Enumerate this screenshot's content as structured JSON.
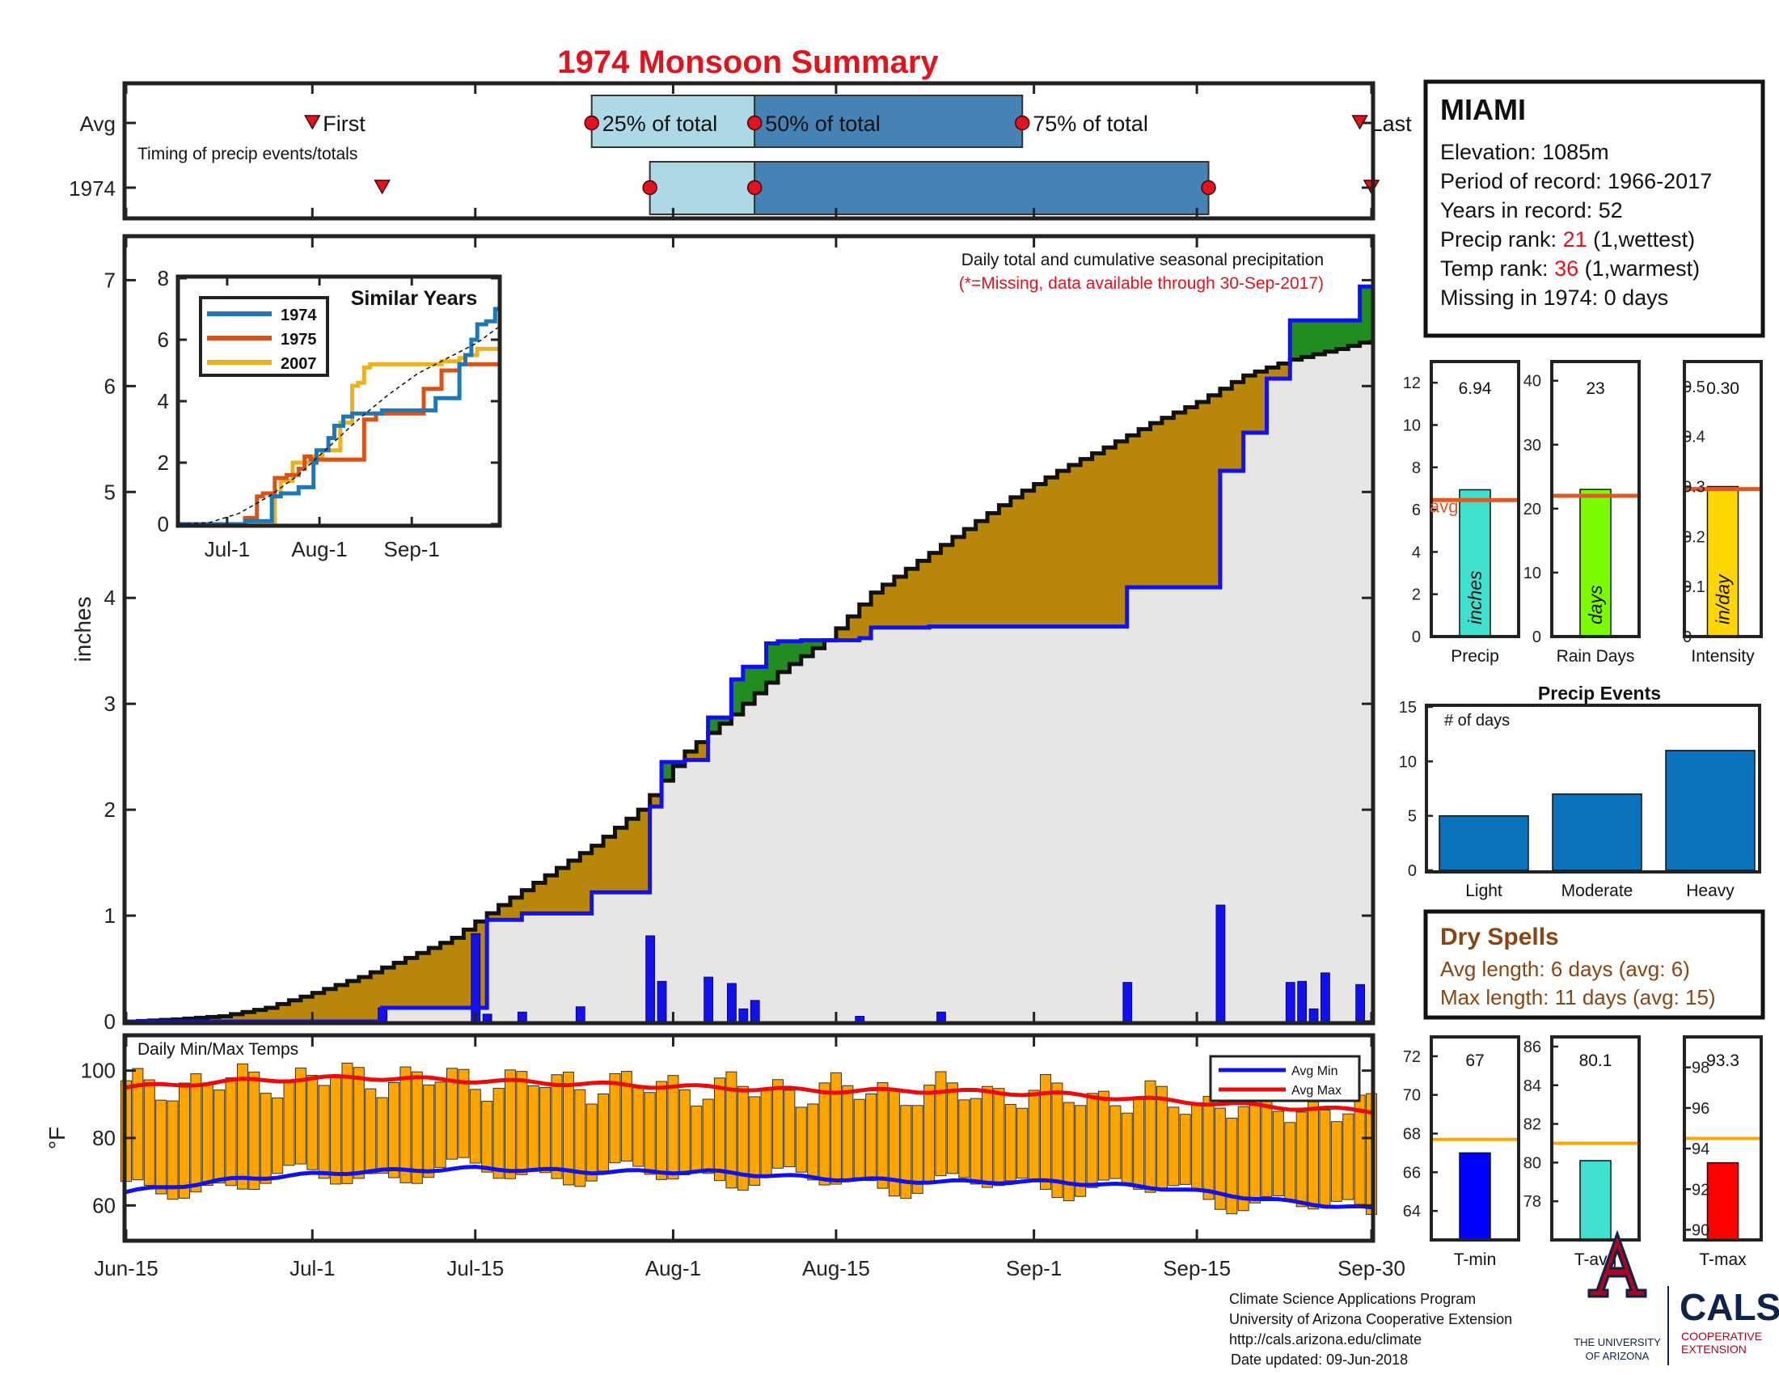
{
  "title": "1974 Monsoon Summary",
  "colors": {
    "title": "#e0141e",
    "red": "#e0141e",
    "avg_line": "#dc5a28",
    "wet_fill": "#b8860b",
    "dry_fill": "#228b22",
    "base_fill": "#e8e6e4",
    "daily_bar": "#1010f0",
    "avg_line_blue": "#1010f0",
    "temp_bar": "#ffa500",
    "avg_max": "#e80c0c",
    "tl_light": "#add8e6",
    "tl_dark": "#4682b4",
    "brown_text": "#8b4513",
    "ua_red": "#ab0520",
    "ua_navy": "#0c234b"
  },
  "timing": {
    "rows": [
      "Avg",
      "1974"
    ],
    "caption": "Timing of precip events/totals",
    "labels": {
      "first": "First",
      "q25": "25% of total",
      "q50": "50% of total",
      "q75": "75% of total",
      "last": "Last"
    },
    "avg": {
      "first": 16,
      "q25": 40,
      "q50": 54,
      "q75": 77,
      "last": 106
    },
    "year": {
      "first": 22,
      "q25": 45,
      "q50": 54,
      "q75": 93,
      "last": 107
    }
  },
  "main": {
    "annotation_1": "Daily total and cumulative seasonal precipitation",
    "annotation_2": "(*=Missing, data available through 30-Sep-2017)",
    "ylabel": "inches",
    "y_ticks": [
      "0",
      "1",
      "2",
      "3",
      "4",
      "5",
      "6",
      "7"
    ],
    "x_ticks": [
      "Jun-15",
      "Jul-1",
      "Jul-15",
      "Aug-1",
      "Aug-15",
      "Sep-1",
      "Sep-15",
      "Sep-30"
    ]
  },
  "inset": {
    "title": "Similar Years",
    "x_ticks": [
      "Jul-1",
      "Aug-1",
      "Sep-1"
    ],
    "y_ticks": [
      "0",
      "2",
      "4",
      "6",
      "8"
    ],
    "legend": [
      "1974",
      "1975",
      "2007"
    ]
  },
  "temps": {
    "title": "Daily Min/Max Temps",
    "ylabel": "°F",
    "y_ticks": [
      "60",
      "80",
      "100"
    ],
    "legend_min": "Avg Min",
    "legend_max": "Avg Max"
  },
  "info": {
    "station": "MIAMI",
    "elevation": "Elevation: 1085m",
    "period": "Period of record: 1966-2017",
    "years": "Years in record: 52",
    "precip_rank_label": "Precip rank: ",
    "precip_rank_value": "21",
    "precip_rank_note": " (1,wettest)",
    "temp_rank_label": "Temp rank: ",
    "temp_rank_value": "36",
    "temp_rank_note": " (1,warmest)",
    "missing": "Missing in 1974: 0 days"
  },
  "stats": {
    "precip": {
      "label": "Precip",
      "value_text": "6.94",
      "unit": "inches",
      "avg_label": "avg",
      "ticks": [
        "0",
        "2",
        "4",
        "6",
        "8",
        "10",
        "12"
      ]
    },
    "days": {
      "label": "Rain Days",
      "value_text": "23",
      "unit": "days",
      "ticks": [
        "0",
        "10",
        "20",
        "30",
        "40"
      ]
    },
    "intensity": {
      "label": "Intensity",
      "value_text": "0.30",
      "unit": "in/day",
      "ticks": [
        "0",
        "0.1",
        "0.2",
        "0.3",
        "0.4",
        "0.5"
      ]
    }
  },
  "events": {
    "title": "Precip Events",
    "note": "# of days",
    "ticks": [
      "0",
      "5",
      "10",
      "15"
    ]
  },
  "dry_spells": {
    "title": "Dry Spells",
    "avg": "Avg length: 6 days (avg: 6)",
    "max": "Max length: 11 days (avg: 15)"
  },
  "temp_stats": {
    "tmin": {
      "label": "T-min",
      "value_text": "67",
      "ticks": [
        "64",
        "66",
        "68",
        "70",
        "72"
      ]
    },
    "tavg": {
      "label": "T-avg",
      "value_text": "80.1",
      "ticks": [
        "78",
        "80",
        "82",
        "84",
        "86"
      ]
    },
    "tmax": {
      "label": "T-max",
      "value_text": "93.3",
      "ticks": [
        "90",
        "92",
        "94",
        "96",
        "98"
      ]
    }
  },
  "footer": {
    "line1": "Climate Science Applications Program",
    "line2": "University of Arizona Cooperative Extension",
    "line3": "http://cals.arizona.edu/climate",
    "line4": "Date updated: 09-Jun-2018",
    "ua_text_1": "THE UNIVERSITY",
    "ua_text_2": "OF ARIZONA",
    "cals": "CALS",
    "coop_1": "COOPERATIVE",
    "coop_2": "EXTENSION"
  },
  "chart_data": [
    {
      "type": "line",
      "title": "Daily total and cumulative seasonal precipitation",
      "ylabel": "inches",
      "x_unit": "day of season (0 = Jun-15, 107 = Sep-30)",
      "ylim": [
        0,
        7.4
      ],
      "series": [
        {
          "name": "avg_cumulative",
          "x": [
            0,
            4,
            8,
            12,
            16,
            20,
            24,
            28,
            32,
            36,
            40,
            44,
            48,
            52,
            56,
            60,
            64,
            68,
            72,
            76,
            80,
            84,
            88,
            92,
            96,
            100,
            104,
            107
          ],
          "values": [
            0,
            0.02,
            0.05,
            0.13,
            0.27,
            0.42,
            0.6,
            0.79,
            1.1,
            1.38,
            1.66,
            2.0,
            2.55,
            2.9,
            3.3,
            3.6,
            4.05,
            4.35,
            4.65,
            4.95,
            5.2,
            5.42,
            5.65,
            5.85,
            6.1,
            6.25,
            6.35,
            6.44
          ]
        },
        {
          "name": "1974_cumulative",
          "x": [
            0,
            22,
            30,
            31,
            34,
            40,
            45,
            46,
            48,
            50,
            52,
            53,
            55,
            56,
            58,
            63,
            64,
            68,
            69,
            70,
            86,
            94,
            96,
            98,
            100,
            102,
            106,
            107
          ],
          "values": [
            0,
            0.13,
            0.13,
            0.96,
            1.02,
            1.22,
            2.03,
            2.45,
            2.47,
            2.87,
            3.23,
            3.35,
            3.57,
            3.59,
            3.6,
            3.62,
            3.72,
            3.72,
            3.73,
            3.73,
            4.1,
            5.2,
            5.56,
            6.07,
            6.62,
            6.62,
            6.94,
            6.94
          ]
        },
        {
          "name": "daily_precip",
          "x": [
            22,
            30,
            31,
            34,
            39,
            45,
            46,
            50,
            52,
            53,
            54,
            55,
            63,
            70,
            86,
            94,
            100,
            101,
            102,
            103,
            106
          ],
          "values": [
            0.13,
            0.83,
            0.07,
            0.09,
            0.14,
            0.81,
            0.38,
            0.42,
            0.36,
            0.12,
            0.2,
            0.0,
            0.05,
            0.09,
            0.37,
            1.1,
            0.37,
            0.38,
            0.12,
            0.46,
            0.35
          ]
        }
      ]
    },
    {
      "type": "line",
      "title": "Similar Years",
      "x_unit": "day of season",
      "ylim": [
        0,
        8
      ],
      "series": [
        {
          "name": "1974",
          "x": [
            0,
            22,
            30,
            31,
            34,
            40,
            45,
            46,
            50,
            52,
            55,
            58,
            63,
            68,
            70,
            86,
            94,
            96,
            98,
            100,
            103,
            106,
            107
          ],
          "values": [
            0,
            0.1,
            0.1,
            0.9,
            1.0,
            1.2,
            2.0,
            2.4,
            2.8,
            3.2,
            3.5,
            3.6,
            3.6,
            3.7,
            3.7,
            4.1,
            5.2,
            5.5,
            6.0,
            6.5,
            6.6,
            7.0,
            7.0
          ]
        },
        {
          "name": "1975",
          "x": [
            0,
            22,
            26,
            28,
            32,
            36,
            40,
            42,
            44,
            48,
            54,
            60,
            62,
            64,
            66,
            70,
            78,
            82,
            86,
            88,
            94,
            100,
            107
          ],
          "values": [
            0,
            0.2,
            0.9,
            1.0,
            1.5,
            1.6,
            1.8,
            2.2,
            2.1,
            2.1,
            2.1,
            2.1,
            3.4,
            3.4,
            3.6,
            3.6,
            3.6,
            4.4,
            4.4,
            5.0,
            5.2,
            5.2,
            5.2
          ]
        },
        {
          "name": "2007",
          "x": [
            0,
            30,
            32,
            34,
            38,
            44,
            48,
            54,
            58,
            60,
            62,
            64,
            66,
            68,
            72,
            76,
            84,
            88,
            90,
            94,
            96,
            100,
            107
          ],
          "values": [
            0,
            0,
            0.9,
            1.4,
            2.0,
            2.2,
            2.4,
            3.3,
            4.5,
            4.6,
            5.1,
            5.2,
            5.2,
            5.2,
            5.2,
            5.2,
            5.2,
            5.3,
            5.3,
            5.4,
            5.5,
            5.7,
            5.7
          ]
        },
        {
          "name": "average",
          "x": [
            0,
            10,
            20,
            30,
            40,
            50,
            60,
            70,
            80,
            90,
            100,
            107
          ],
          "values": [
            0,
            0.05,
            0.35,
            0.9,
            1.6,
            2.5,
            3.4,
            4.2,
            4.9,
            5.4,
            5.9,
            6.4
          ]
        }
      ]
    },
    {
      "type": "bar",
      "title": "Daily Min/Max Temps",
      "ylabel": "°F",
      "ylim": [
        50,
        110
      ],
      "series": [
        {
          "name": "Avg Max",
          "x": [
            0,
            10,
            20,
            30,
            40,
            50,
            60,
            70,
            80,
            90,
            100,
            107
          ],
          "values": [
            95,
            97,
            98,
            97,
            96,
            95,
            94,
            94,
            93,
            91,
            89,
            88
          ]
        },
        {
          "name": "Avg Min",
          "x": [
            0,
            10,
            20,
            30,
            40,
            50,
            60,
            70,
            80,
            90,
            100,
            107
          ],
          "values": [
            64,
            68,
            70,
            71,
            70,
            70,
            68,
            67,
            67,
            65,
            61,
            59
          ]
        }
      ]
    },
    {
      "type": "bar",
      "title": "Precip / Rain Days / Intensity",
      "categories": [
        "Precip",
        "Rain Days",
        "Intensity"
      ],
      "series": [
        {
          "name": "1974",
          "values": [
            6.94,
            23,
            0.3
          ]
        },
        {
          "name": "avg",
          "values": [
            6.45,
            22,
            0.295
          ]
        }
      ],
      "ylims": [
        [
          0,
          13
        ],
        [
          0,
          43
        ],
        [
          0,
          0.55
        ]
      ]
    },
    {
      "type": "bar",
      "title": "Precip Events",
      "categories": [
        "Light",
        "Moderate",
        "Heavy"
      ],
      "values": [
        5,
        7,
        11
      ],
      "ylim": [
        0,
        15
      ]
    },
    {
      "type": "bar",
      "title": "Temperature stats",
      "categories": [
        "T-min",
        "T-avg",
        "T-max"
      ],
      "series": [
        {
          "name": "1974",
          "values": [
            67,
            80.1,
            93.3
          ]
        },
        {
          "name": "avg",
          "values": [
            67.7,
            81.0,
            94.5
          ]
        }
      ],
      "ylims": [
        [
          62.5,
          73
        ],
        [
          76,
          86.5
        ],
        [
          89.5,
          99.5
        ]
      ]
    }
  ]
}
